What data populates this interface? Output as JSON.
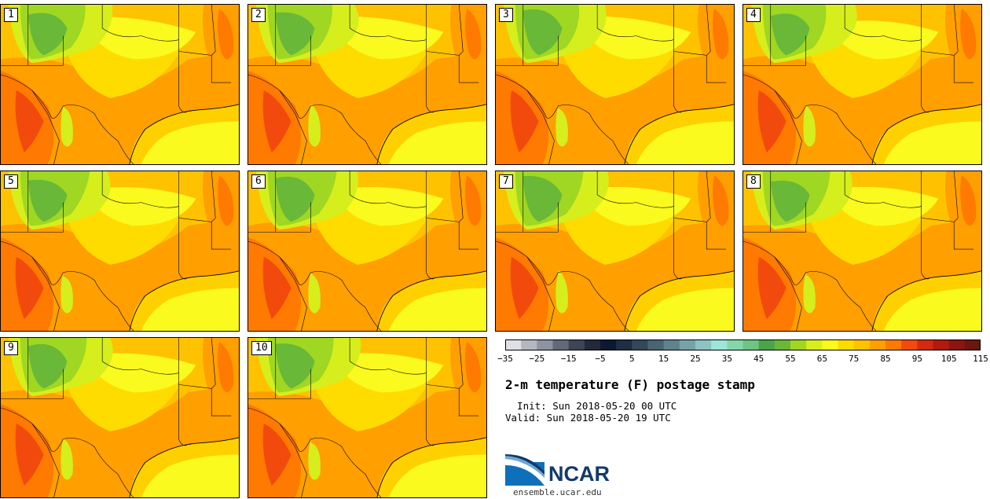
{
  "panels": [
    {
      "label": "1"
    },
    {
      "label": "2"
    },
    {
      "label": "3"
    },
    {
      "label": "4"
    },
    {
      "label": "5"
    },
    {
      "label": "6"
    },
    {
      "label": "7"
    },
    {
      "label": "8"
    },
    {
      "label": "9"
    },
    {
      "label": "10"
    }
  ],
  "colorbar": {
    "colors": [
      "#dfe0e6",
      "#b5b7c0",
      "#8e93a1",
      "#636978",
      "#3d4658",
      "#22293b",
      "#0c1a31",
      "#1f2e45",
      "#34485c",
      "#4a6474",
      "#5f838d",
      "#76a3a8",
      "#8dc4c3",
      "#9be6d9",
      "#84d8a8",
      "#6cc583",
      "#4aa44a",
      "#6ab838",
      "#9fd722",
      "#d6ee1c",
      "#fafa1e",
      "#ffdc00",
      "#ffc200",
      "#ffa000",
      "#ff7a00",
      "#f24a0c",
      "#d42a10",
      "#b21a0e",
      "#8a160f",
      "#6b1610"
    ],
    "ticks": [
      "−35",
      "−25",
      "−15",
      "−5",
      "5",
      "15",
      "25",
      "35",
      "45",
      "55",
      "65",
      "75",
      "85",
      "95",
      "105",
      "115"
    ]
  },
  "title": "2-m temperature (F) postage stamp",
  "init": "  Init: Sun 2018-05-20 00 UTC",
  "valid": "Valid: Sun 2018-05-20 19 UTC",
  "logo": {
    "name": "NCAR",
    "url": "ensemble.ucar.edu"
  }
}
